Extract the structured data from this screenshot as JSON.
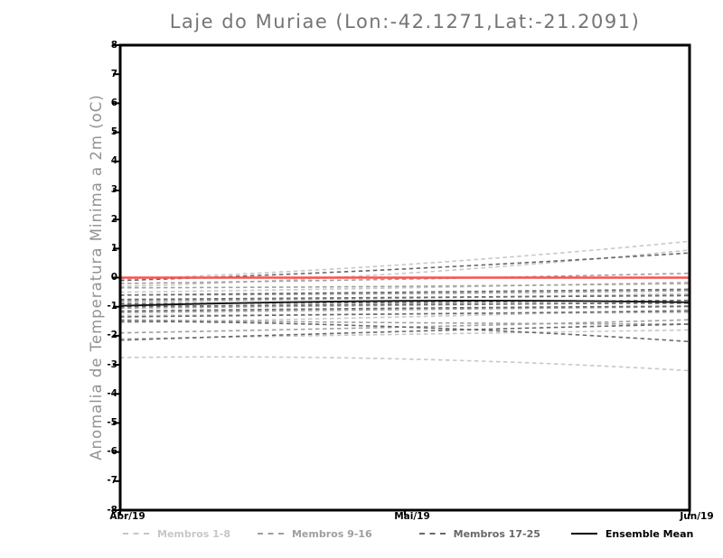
{
  "chart_data": {
    "type": "line",
    "title": "Laje do Muriae (Lon:-42.1271,Lat:-21.2091)",
    "ylabel": "Anomalia de Temperatura Minima a 2m (oC)",
    "xlabel": "",
    "x_categories": [
      "Abr/19",
      "Mai/19",
      "Jun/19"
    ],
    "ylim": [
      -8,
      8
    ],
    "ytick_labels": [
      "8",
      "7",
      "6",
      "5",
      "4",
      "3",
      "2",
      "1",
      "0",
      "-1",
      "-2",
      "-3",
      "-4",
      "-5",
      "-6",
      "-7",
      "-8"
    ],
    "grid": false,
    "legend_position": "bottom",
    "zero_line": {
      "value": 0,
      "color": "#f85252"
    },
    "ensemble_mean": {
      "name": "Ensemble Mean",
      "color": "#141414",
      "values": [
        -0.97,
        -0.8,
        -0.85
      ]
    },
    "member_groups": [
      {
        "name": "Membros 1-8",
        "color": "#c7c7c7",
        "members": [
          [
            -0.05,
            0.45,
            1.25
          ],
          [
            -0.3,
            0.15,
            0.95
          ],
          [
            -0.5,
            -0.35,
            -0.15
          ],
          [
            -0.85,
            -0.7,
            -0.55
          ],
          [
            -1.3,
            -1.25,
            -1.2
          ],
          [
            -1.55,
            -1.35,
            -1.1
          ],
          [
            -2.1,
            -1.95,
            -1.8
          ],
          [
            -2.75,
            -2.8,
            -3.2
          ]
        ]
      },
      {
        "name": "Membros 9-16",
        "color": "#9f9f9f",
        "members": [
          [
            -0.2,
            -0.05,
            0.15
          ],
          [
            -0.35,
            -0.3,
            -0.2
          ],
          [
            -0.6,
            -0.55,
            -0.45
          ],
          [
            -0.8,
            -0.7,
            -0.6
          ],
          [
            -1.05,
            -0.95,
            -0.85
          ],
          [
            -1.2,
            -1.1,
            -1.0
          ],
          [
            -1.45,
            -1.55,
            -1.6
          ],
          [
            -1.9,
            -1.7,
            -1.45
          ]
        ]
      },
      {
        "name": "Membros 17-25",
        "color": "#676767",
        "members": [
          [
            -0.1,
            0.3,
            0.85
          ],
          [
            -0.6,
            -0.5,
            -0.4
          ],
          [
            -0.75,
            -0.68,
            -0.62
          ],
          [
            -0.9,
            -0.85,
            -0.78
          ],
          [
            -1.0,
            -0.92,
            -0.88
          ],
          [
            -1.15,
            -1.05,
            -0.98
          ],
          [
            -1.35,
            -1.25,
            -1.15
          ],
          [
            -1.5,
            -1.7,
            -2.2
          ],
          [
            -2.15,
            -1.85,
            -1.6
          ]
        ]
      }
    ]
  },
  "legend": [
    {
      "label": "Membros 1-8",
      "color": "#c7c7c7",
      "style": "dashed"
    },
    {
      "label": "Membros 9-16",
      "color": "#9f9f9f",
      "style": "dashed"
    },
    {
      "label": "Membros 17-25",
      "color": "#676767",
      "style": "dashed"
    },
    {
      "label": "Ensemble Mean",
      "color": "#000000",
      "style": "solid"
    }
  ]
}
